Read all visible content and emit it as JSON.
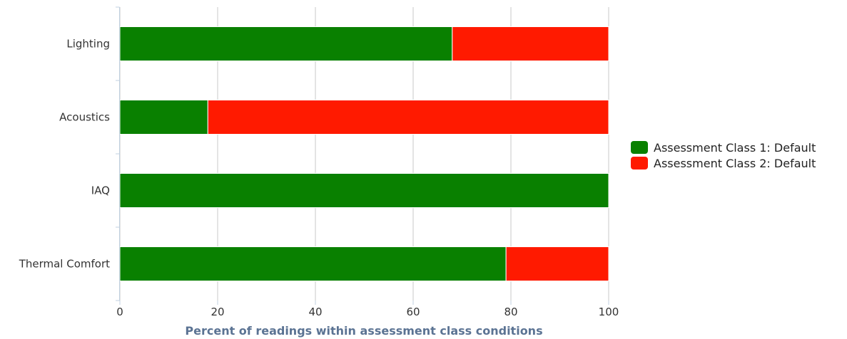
{
  "chart_data": {
    "type": "bar",
    "orientation": "horizontal",
    "stacked": true,
    "categories": [
      "Lighting",
      "Acoustics",
      "IAQ",
      "Thermal Comfort"
    ],
    "series": [
      {
        "name": "Assessment Class 1: Default",
        "color": "#098000",
        "values": [
          68,
          18,
          100,
          79
        ]
      },
      {
        "name": "Assessment Class 2: Default",
        "color": "#ff1a00",
        "values": [
          32,
          82,
          0,
          21
        ]
      }
    ],
    "title": "",
    "xlabel": "Percent of readings within assessment class conditions",
    "ylabel": "",
    "xlim": [
      0,
      100
    ],
    "xticks": [
      0,
      20,
      40,
      60,
      80,
      100
    ],
    "grid": true,
    "legend_position": "right"
  }
}
